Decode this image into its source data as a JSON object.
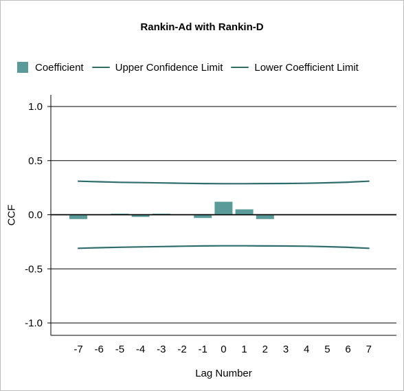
{
  "chart_data": {
    "type": "bar",
    "title": "Rankin-Ad with Rankin-D",
    "xlabel": "Lag Number",
    "ylabel": "CCF",
    "ylim": [
      -1.0,
      1.0
    ],
    "yticks": [
      "1.0",
      "0.5",
      "0.0",
      "-0.5",
      "-1.0"
    ],
    "ytick_values": [
      1.0,
      0.5,
      0.0,
      -0.5,
      -1.0
    ],
    "categories": [
      "-7",
      "-6",
      "-5",
      "-4",
      "-3",
      "-2",
      "-1",
      "0",
      "1",
      "2",
      "3",
      "4",
      "5",
      "6",
      "7"
    ],
    "grid": "horizontal",
    "legend": "top",
    "series": [
      {
        "name": "Coefficient",
        "kind": "bar",
        "color": "#5a9a99",
        "values": [
          -0.04,
          0.0,
          0.01,
          -0.02,
          0.01,
          0.0,
          -0.03,
          0.12,
          0.05,
          -0.04,
          0.0,
          0.0,
          0.0,
          0.0,
          0.0
        ]
      },
      {
        "name": "Upper Confidence Limit",
        "kind": "line",
        "color": "#2e6d6b",
        "values": [
          0.31,
          0.305,
          0.3,
          0.297,
          0.294,
          0.291,
          0.288,
          0.287,
          0.287,
          0.288,
          0.289,
          0.291,
          0.295,
          0.301,
          0.31
        ]
      },
      {
        "name": "Lower Coefficient Limit",
        "kind": "line",
        "color": "#2e6d6b",
        "values": [
          -0.31,
          -0.305,
          -0.3,
          -0.297,
          -0.294,
          -0.291,
          -0.288,
          -0.287,
          -0.287,
          -0.288,
          -0.289,
          -0.291,
          -0.295,
          -0.301,
          -0.31
        ]
      }
    ]
  }
}
